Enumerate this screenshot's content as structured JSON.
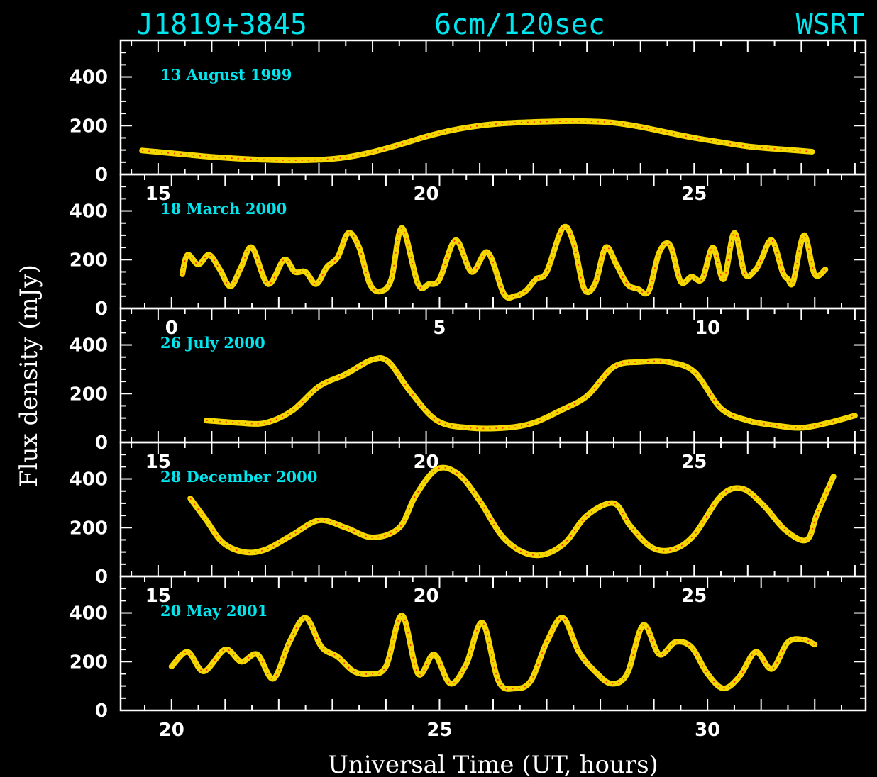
{
  "title": {
    "source": "J1819+3845",
    "band": "6cm/120sec",
    "telescope": "WSRT"
  },
  "colors": {
    "background": "#000000",
    "title_text": "#00e5ee",
    "date_labels": "#00e5ee",
    "axes": "#ffffff",
    "curve": "#f5d800",
    "curve_points": "#ff2a00"
  },
  "chart_data": {
    "type": "line",
    "xlabel": "Universal Time (UT, hours)",
    "ylabel": "Flux density (mJy)",
    "yticks": [
      0,
      200,
      400
    ],
    "ylim": [
      0,
      550
    ],
    "grid": false,
    "panels": [
      {
        "label": "13 August 1999",
        "xlim": [
          14.3,
          28.2
        ],
        "xticks": [
          15,
          20,
          25
        ],
        "series": [
          {
            "x": [
              14.7,
              15.0,
              15.5,
              16.0,
              16.5,
              17.0,
              17.5,
              18.0,
              18.5,
              19.0,
              19.5,
              20.0,
              20.5,
              21.0,
              21.5,
              22.0,
              22.5,
              23.0,
              23.5,
              24.0,
              24.5,
              25.0,
              25.5,
              26.0,
              26.5,
              27.0,
              27.2
            ],
            "y": [
              98,
              92,
              82,
              72,
              65,
              60,
              58,
              60,
              70,
              92,
              122,
              155,
              182,
              200,
              210,
              215,
              218,
              218,
              212,
              195,
              172,
              150,
              132,
              115,
              105,
              97,
              93
            ]
          }
        ]
      },
      {
        "label": "18 March 2000",
        "xlim": [
          -0.95,
          12.95
        ],
        "xticks": [
          0,
          5,
          10
        ],
        "series": [
          {
            "x": [
              0.2,
              0.3,
              0.5,
              0.7,
              0.9,
              1.1,
              1.3,
              1.5,
              1.8,
              2.1,
              2.3,
              2.5,
              2.7,
              2.9,
              3.1,
              3.3,
              3.5,
              3.7,
              3.9,
              4.1,
              4.3,
              4.6,
              4.8,
              5.0,
              5.3,
              5.6,
              5.9,
              6.2,
              6.4,
              6.6,
              6.8,
              7.0,
              7.3,
              7.5,
              7.7,
              7.9,
              8.1,
              8.3,
              8.5,
              8.7,
              8.9,
              9.1,
              9.3,
              9.5,
              9.7,
              9.9,
              10.1,
              10.3,
              10.5,
              10.7,
              10.9,
              11.0,
              11.2,
              11.4,
              11.5,
              11.6,
              11.8,
              12.0,
              12.2
            ],
            "y": [
              140,
              220,
              180,
              220,
              160,
              90,
              170,
              250,
              100,
              200,
              150,
              150,
              100,
              170,
              210,
              310,
              250,
              100,
              70,
              120,
              330,
              100,
              100,
              120,
              280,
              150,
              230,
              60,
              50,
              70,
              120,
              150,
              330,
              270,
              80,
              100,
              250,
              180,
              100,
              80,
              70,
              230,
              260,
              110,
              130,
              120,
              250,
              120,
              310,
              140,
              160,
              200,
              280,
              150,
              120,
              110,
              300,
              140,
              160
            ]
          }
        ]
      },
      {
        "label": "26 July 2000",
        "xlim": [
          14.3,
          28.2
        ],
        "xticks": [
          15,
          20,
          25
        ],
        "series": [
          {
            "x": [
              15.9,
              16.5,
              17.0,
              17.5,
              18.0,
              18.5,
              19.0,
              19.3,
              19.7,
              20.2,
              20.8,
              21.5,
              22.0,
              22.5,
              23.0,
              23.5,
              24.0,
              24.5,
              25.0,
              25.5,
              26.0,
              26.5,
              27.0,
              27.5,
              28.0
            ],
            "y": [
              90,
              80,
              80,
              130,
              230,
              280,
              340,
              330,
              210,
              90,
              60,
              60,
              80,
              130,
              190,
              310,
              330,
              330,
              290,
              140,
              90,
              70,
              60,
              80,
              110
            ]
          }
        ]
      },
      {
        "label": "28 December 2000",
        "xlim": [
          14.3,
          28.2
        ],
        "xticks": [
          15,
          20,
          25
        ],
        "series": [
          {
            "x": [
              15.6,
              15.9,
              16.2,
              16.6,
              17.0,
              17.5,
              18.0,
              18.5,
              19.0,
              19.5,
              19.8,
              20.2,
              20.6,
              21.0,
              21.4,
              21.8,
              22.2,
              22.6,
              23.0,
              23.5,
              23.8,
              24.2,
              24.6,
              25.0,
              25.5,
              25.9,
              26.3,
              26.7,
              27.1,
              27.3,
              27.6
            ],
            "y": [
              320,
              230,
              140,
              100,
              110,
              170,
              230,
              200,
              160,
              200,
              330,
              440,
              420,
              310,
              170,
              100,
              90,
              140,
              250,
              300,
              210,
              120,
              110,
              170,
              330,
              360,
              290,
              190,
              150,
              260,
              410
            ]
          }
        ]
      },
      {
        "label": "20 May 2001",
        "xlim": [
          19.05,
          32.95
        ],
        "xticks": [
          20,
          25,
          30
        ],
        "series": [
          {
            "x": [
              20.0,
              20.3,
              20.6,
              21.0,
              21.3,
              21.6,
              21.9,
              22.2,
              22.5,
              22.8,
              23.1,
              23.4,
              23.7,
              24.0,
              24.3,
              24.6,
              24.9,
              25.2,
              25.5,
              25.8,
              26.1,
              26.4,
              26.7,
              27.0,
              27.3,
              27.6,
              27.9,
              28.2,
              28.5,
              28.8,
              29.1,
              29.4,
              29.7,
              30.0,
              30.3,
              30.6,
              30.9,
              31.2,
              31.5,
              31.8,
              32.0
            ],
            "y": [
              180,
              240,
              160,
              250,
              200,
              230,
              130,
              280,
              380,
              260,
              220,
              160,
              150,
              180,
              390,
              150,
              230,
              110,
              190,
              360,
              120,
              90,
              120,
              280,
              380,
              240,
              160,
              110,
              150,
              350,
              230,
              280,
              260,
              150,
              90,
              140,
              240,
              170,
              280,
              290,
              270
            ]
          }
        ]
      }
    ]
  }
}
